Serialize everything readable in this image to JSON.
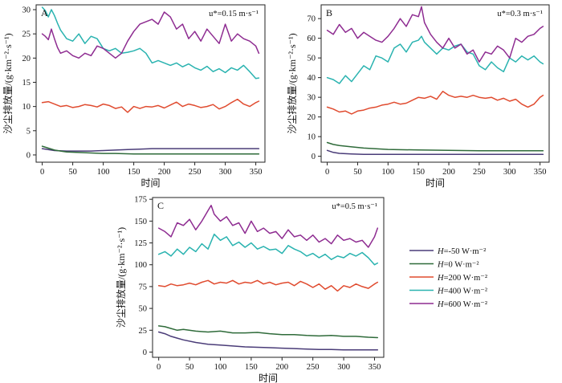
{
  "chart_data": [
    {
      "panel": "A",
      "type": "line",
      "condition": "u*=0.15 m·s⁻¹",
      "xlabel": "时间",
      "ylabel": "沙尘排放量/(g·km⁻²·s⁻¹)",
      "xlim": [
        -10,
        365
      ],
      "ylim": [
        -1.5,
        31
      ],
      "xticks": [
        0,
        50,
        100,
        150,
        200,
        250,
        300,
        350
      ],
      "yticks": [
        0,
        5,
        10,
        15,
        20,
        25,
        30
      ],
      "series": [
        {
          "name": "H=-50 W·m⁻²",
          "color": "#4a3c78",
          "x": [
            0,
            20,
            40,
            60,
            80,
            100,
            120,
            140,
            160,
            180,
            200,
            220,
            240,
            260,
            280,
            300,
            320,
            340,
            355
          ],
          "y": [
            1.3,
            0.9,
            0.8,
            0.8,
            0.8,
            0.9,
            1.0,
            1.1,
            1.2,
            1.3,
            1.3,
            1.3,
            1.3,
            1.3,
            1.3,
            1.3,
            1.3,
            1.3,
            1.3
          ]
        },
        {
          "name": "H=0 W·m⁻²",
          "color": "#2f6b3a",
          "x": [
            0,
            10,
            20,
            30,
            40,
            60,
            80,
            100,
            120,
            150,
            200,
            250,
            300,
            355
          ],
          "y": [
            1.8,
            1.4,
            1.0,
            0.8,
            0.6,
            0.5,
            0.4,
            0.3,
            0.3,
            0.2,
            0.2,
            0.2,
            0.2,
            0.2
          ]
        },
        {
          "name": "H=200 W·m⁻²",
          "color": "#e04b2f",
          "x": [
            0,
            10,
            20,
            30,
            40,
            50,
            60,
            70,
            80,
            90,
            100,
            110,
            120,
            130,
            140,
            150,
            160,
            170,
            180,
            190,
            200,
            210,
            220,
            230,
            240,
            250,
            260,
            270,
            280,
            290,
            300,
            310,
            320,
            330,
            340,
            350,
            355
          ],
          "y": [
            10.8,
            11.0,
            10.5,
            10.0,
            10.2,
            9.8,
            10.0,
            10.4,
            10.2,
            9.9,
            10.5,
            10.2,
            9.6,
            9.9,
            8.8,
            10.0,
            9.6,
            10.0,
            9.9,
            10.2,
            9.7,
            10.3,
            10.9,
            10.0,
            10.5,
            10.2,
            9.8,
            10.0,
            10.4,
            9.5,
            10.0,
            10.8,
            11.5,
            10.5,
            10.0,
            10.8,
            11.1
          ]
        },
        {
          "name": "H=400 W·m⁻²",
          "color": "#2ab3b0",
          "x": [
            0,
            5,
            10,
            15,
            20,
            25,
            30,
            40,
            50,
            60,
            70,
            80,
            90,
            100,
            110,
            120,
            130,
            140,
            150,
            160,
            170,
            180,
            190,
            200,
            210,
            220,
            230,
            240,
            250,
            260,
            270,
            280,
            290,
            300,
            310,
            320,
            330,
            340,
            350,
            355
          ],
          "y": [
            30.5,
            29.8,
            28.5,
            30.0,
            28.8,
            27.2,
            25.8,
            24.0,
            23.5,
            25.0,
            23.0,
            24.5,
            24.0,
            22.0,
            21.5,
            22.0,
            21.0,
            21.2,
            21.5,
            22.0,
            21.0,
            19.0,
            19.5,
            19.0,
            18.5,
            19.0,
            18.2,
            18.8,
            18.0,
            17.5,
            18.3,
            17.2,
            17.8,
            17.0,
            18.0,
            17.5,
            18.5,
            17.2,
            15.8,
            15.9
          ]
        },
        {
          "name": "H=600 W·m⁻²",
          "color": "#8e2c91",
          "x": [
            0,
            5,
            10,
            15,
            20,
            25,
            30,
            40,
            50,
            60,
            70,
            80,
            90,
            100,
            110,
            120,
            130,
            140,
            150,
            160,
            170,
            180,
            190,
            200,
            210,
            220,
            230,
            240,
            250,
            260,
            270,
            280,
            290,
            300,
            310,
            320,
            330,
            340,
            350,
            355
          ],
          "y": [
            25.0,
            24.5,
            23.8,
            26.0,
            24.0,
            22.2,
            21.0,
            21.5,
            20.5,
            20.0,
            21.0,
            20.5,
            22.5,
            22.0,
            21.0,
            20.0,
            21.0,
            23.5,
            25.5,
            27.0,
            27.5,
            28.0,
            27.0,
            29.5,
            28.5,
            26.0,
            27.0,
            24.0,
            25.5,
            23.5,
            26.0,
            24.5,
            23.0,
            27.0,
            23.5,
            25.0,
            24.0,
            23.5,
            22.5,
            21.0
          ]
        }
      ]
    },
    {
      "panel": "B",
      "type": "line",
      "condition": "u*=0.3 m·s⁻¹",
      "xlabel": "时间",
      "ylabel": "沙尘排放量/(g·km⁻²·s⁻¹)",
      "xlim": [
        -10,
        365
      ],
      "ylim": [
        -3,
        77
      ],
      "xticks": [
        0,
        50,
        100,
        150,
        200,
        250,
        300,
        350
      ],
      "yticks": [
        0,
        10,
        20,
        30,
        40,
        50,
        60,
        70
      ],
      "series": [
        {
          "name": "H=-50 W·m⁻²",
          "color": "#4a3c78",
          "x": [
            0,
            10,
            20,
            40,
            60,
            80,
            100,
            150,
            200,
            250,
            300,
            355
          ],
          "y": [
            3.0,
            2.0,
            1.5,
            1.2,
            1.0,
            1.0,
            1.0,
            1.0,
            1.0,
            1.0,
            1.0,
            1.0
          ]
        },
        {
          "name": "H=0 W·m⁻²",
          "color": "#2f6b3a",
          "x": [
            0,
            10,
            20,
            40,
            60,
            80,
            100,
            150,
            200,
            250,
            300,
            355
          ],
          "y": [
            7.0,
            6.0,
            5.5,
            4.8,
            4.2,
            3.8,
            3.5,
            3.2,
            3.0,
            2.8,
            2.8,
            2.8
          ]
        },
        {
          "name": "H=200 W·m⁻²",
          "color": "#e04b2f",
          "x": [
            0,
            10,
            20,
            30,
            40,
            50,
            60,
            70,
            80,
            90,
            100,
            110,
            120,
            130,
            140,
            150,
            160,
            170,
            180,
            190,
            200,
            210,
            220,
            230,
            240,
            250,
            260,
            270,
            280,
            290,
            300,
            310,
            320,
            330,
            340,
            350,
            355
          ],
          "y": [
            25.0,
            24.0,
            22.5,
            23.0,
            21.5,
            23.0,
            23.5,
            24.5,
            25.0,
            26.0,
            26.5,
            27.5,
            26.5,
            27.0,
            28.5,
            30.0,
            29.5,
            30.5,
            29.0,
            33.0,
            31.0,
            30.0,
            30.5,
            30.0,
            31.0,
            30.0,
            29.5,
            30.0,
            28.5,
            29.5,
            28.0,
            29.0,
            26.5,
            25.0,
            26.5,
            30.0,
            31.0
          ]
        },
        {
          "name": "H=400 W·m⁻²",
          "color": "#2ab3b0",
          "x": [
            0,
            10,
            20,
            30,
            40,
            50,
            60,
            70,
            80,
            90,
            100,
            110,
            120,
            130,
            140,
            150,
            155,
            160,
            170,
            180,
            190,
            200,
            210,
            220,
            230,
            240,
            250,
            260,
            270,
            280,
            290,
            300,
            310,
            320,
            330,
            340,
            350,
            355
          ],
          "y": [
            40.0,
            39.0,
            37.0,
            41.0,
            38.0,
            42.0,
            46.0,
            44.0,
            51.0,
            50.0,
            48.0,
            55.0,
            57.0,
            53.0,
            58.0,
            59.0,
            61.0,
            58.0,
            55.0,
            52.0,
            55.0,
            54.0,
            56.0,
            57.0,
            53.0,
            52.0,
            46.0,
            44.0,
            48.0,
            45.0,
            43.0,
            50.0,
            48.0,
            51.0,
            49.0,
            51.0,
            48.0,
            47.0
          ]
        },
        {
          "name": "H=600 W·m⁻²",
          "color": "#8e2c91",
          "x": [
            0,
            10,
            20,
            30,
            40,
            50,
            60,
            70,
            80,
            90,
            100,
            110,
            120,
            130,
            140,
            150,
            155,
            160,
            170,
            180,
            190,
            200,
            210,
            220,
            230,
            240,
            250,
            260,
            270,
            280,
            290,
            300,
            310,
            320,
            330,
            340,
            350,
            355
          ],
          "y": [
            64.0,
            62.0,
            67.0,
            63.0,
            65.0,
            60.0,
            63.0,
            61.0,
            59.0,
            58.0,
            61.0,
            65.0,
            70.0,
            66.0,
            72.0,
            71.0,
            76.0,
            68.0,
            62.0,
            58.0,
            55.0,
            60.0,
            55.0,
            57.0,
            52.0,
            54.0,
            48.0,
            53.0,
            52.0,
            56.0,
            54.0,
            50.0,
            60.0,
            58.0,
            61.0,
            62.0,
            65.0,
            66.0
          ]
        }
      ]
    },
    {
      "panel": "C",
      "type": "line",
      "condition": "u*=0.5 m·s⁻¹",
      "xlabel": "时间",
      "ylabel": "沙尘排放量/(g·km⁻²·s⁻¹)",
      "xlim": [
        -10,
        365
      ],
      "ylim": [
        -6,
        177
      ],
      "xticks": [
        0,
        50,
        100,
        150,
        200,
        250,
        300,
        350
      ],
      "yticks": [
        0,
        25,
        50,
        75,
        100,
        125,
        150,
        175
      ],
      "series": [
        {
          "name": "H=-50 W·m⁻²",
          "color": "#4a3c78",
          "x": [
            0,
            10,
            20,
            30,
            40,
            60,
            80,
            100,
            120,
            140,
            160,
            180,
            200,
            220,
            240,
            260,
            280,
            300,
            320,
            340,
            355
          ],
          "y": [
            23.0,
            21.0,
            18.0,
            16.0,
            14.0,
            11.0,
            9.0,
            8.0,
            7.0,
            6.0,
            5.5,
            5.0,
            4.5,
            4.0,
            3.5,
            3.0,
            3.0,
            2.5,
            2.5,
            2.5,
            2.5
          ]
        },
        {
          "name": "H=0 W·m⁻²",
          "color": "#2f6b3a",
          "x": [
            0,
            10,
            20,
            30,
            40,
            60,
            80,
            100,
            120,
            140,
            160,
            180,
            200,
            220,
            240,
            260,
            280,
            300,
            320,
            340,
            355
          ],
          "y": [
            30.0,
            29.0,
            27.0,
            25.0,
            26.0,
            24.0,
            23.0,
            24.0,
            22.0,
            22.0,
            22.5,
            21.0,
            20.0,
            20.0,
            19.0,
            18.5,
            19.0,
            18.0,
            18.0,
            17.0,
            16.5
          ]
        },
        {
          "name": "H=200 W·m⁻²",
          "color": "#e04b2f",
          "x": [
            0,
            10,
            20,
            30,
            40,
            50,
            60,
            70,
            80,
            90,
            100,
            110,
            120,
            130,
            140,
            150,
            160,
            170,
            180,
            190,
            200,
            210,
            220,
            230,
            240,
            250,
            260,
            270,
            280,
            290,
            300,
            310,
            320,
            330,
            340,
            350,
            355
          ],
          "y": [
            76.0,
            75.0,
            78.0,
            76.0,
            77.0,
            79.0,
            77.0,
            80.0,
            82.0,
            78.0,
            80.0,
            79.0,
            82.0,
            78.0,
            80.0,
            79.0,
            82.0,
            78.0,
            80.0,
            77.0,
            79.0,
            80.0,
            76.0,
            81.0,
            78.0,
            74.0,
            78.0,
            72.0,
            76.0,
            70.0,
            76.0,
            74.0,
            78.0,
            75.0,
            73.0,
            78.0,
            80.0
          ]
        },
        {
          "name": "H=400 W·m⁻²",
          "color": "#2ab3b0",
          "x": [
            0,
            10,
            20,
            30,
            40,
            50,
            60,
            70,
            80,
            90,
            100,
            110,
            120,
            130,
            140,
            150,
            160,
            170,
            180,
            190,
            200,
            210,
            220,
            230,
            240,
            250,
            260,
            270,
            280,
            290,
            300,
            310,
            320,
            330,
            340,
            350,
            355
          ],
          "y": [
            112.0,
            115.0,
            110.0,
            118.0,
            112.0,
            120.0,
            115.0,
            124.0,
            118.0,
            135.0,
            128.0,
            132.0,
            122.0,
            126.0,
            120.0,
            125.0,
            118.0,
            121.0,
            117.0,
            118.0,
            113.0,
            122.0,
            118.0,
            115.0,
            110.0,
            113.0,
            108.0,
            112.0,
            106.0,
            110.0,
            108.0,
            113.0,
            110.0,
            114.0,
            108.0,
            100.0,
            102.0
          ]
        },
        {
          "name": "H=600 W·m⁻²",
          "color": "#8e2c91",
          "x": [
            0,
            10,
            20,
            30,
            40,
            50,
            60,
            70,
            80,
            85,
            90,
            100,
            110,
            120,
            130,
            140,
            150,
            160,
            170,
            180,
            190,
            200,
            210,
            220,
            230,
            240,
            250,
            260,
            270,
            280,
            290,
            300,
            310,
            320,
            330,
            340,
            350,
            355
          ],
          "y": [
            142.0,
            138.0,
            132.0,
            148.0,
            145.0,
            152.0,
            140.0,
            150.0,
            162.0,
            168.0,
            158.0,
            150.0,
            155.0,
            145.0,
            148.0,
            136.0,
            150.0,
            138.0,
            142.0,
            136.0,
            138.0,
            130.0,
            140.0,
            132.0,
            134.0,
            128.0,
            134.0,
            126.0,
            130.0,
            124.0,
            134.0,
            128.0,
            130.0,
            126.0,
            128.0,
            120.0,
            132.0,
            142.0
          ]
        }
      ]
    }
  ],
  "legend": [
    {
      "prefix": "H",
      "rest": "=-50 W·m⁻²",
      "color": "#4a3c78"
    },
    {
      "prefix": "H",
      "rest": "=0 W·m⁻²",
      "color": "#2f6b3a"
    },
    {
      "prefix": "H",
      "rest": "=200 W·m⁻²",
      "color": "#e04b2f"
    },
    {
      "prefix": "H",
      "rest": "=400 W·m⁻²",
      "color": "#2ab3b0"
    },
    {
      "prefix": "H",
      "rest": "=600 W·m⁻²",
      "color": "#8e2c91"
    }
  ]
}
